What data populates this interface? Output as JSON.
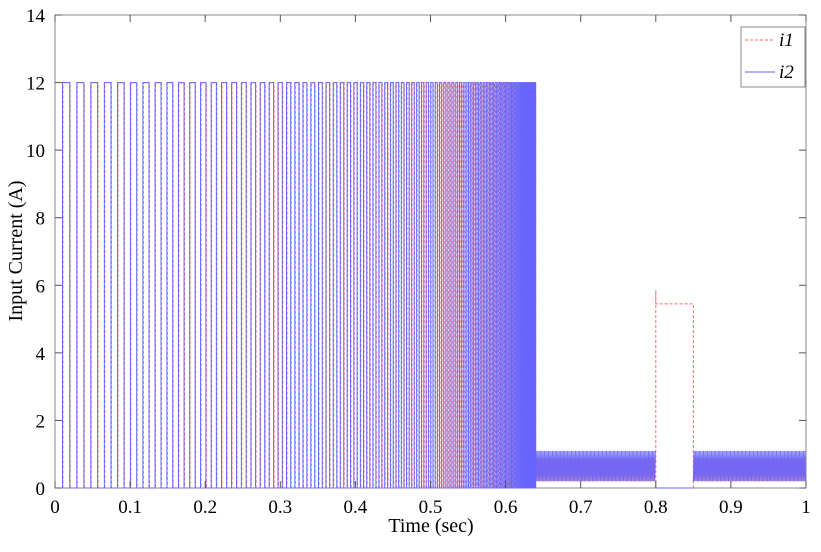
{
  "chart_data": {
    "type": "line",
    "xlabel": "Time (sec)",
    "ylabel": "Input Current (A)",
    "xlim": [
      0,
      1
    ],
    "ylim": [
      0,
      14
    ],
    "x_ticks": [
      "0",
      "0.1",
      "0.2",
      "0.3",
      "0.4",
      "0.5",
      "0.6",
      "0.7",
      "0.8",
      "0.9",
      "1"
    ],
    "y_ticks": [
      "0",
      "2",
      "4",
      "6",
      "8",
      "10",
      "12",
      "14"
    ],
    "grid": false,
    "legend_position": "top-right",
    "series": [
      {
        "name": "i1",
        "color": "#ff6666",
        "line_style": "dashed",
        "pulse_high": 12,
        "pulse_region": [
          0.01,
          0.64
        ],
        "ripple_band": [
          0.2,
          0.9
        ],
        "ripple_regions": [
          [
            0.64,
            0.8
          ],
          [
            0.85,
            1.0
          ]
        ],
        "step": {
          "x": [
            0.8,
            0.85
          ],
          "value": 5.45,
          "spike": 5.85
        }
      },
      {
        "name": "i2",
        "color": "#6666ff",
        "line_style": "solid",
        "pulse_high": 12,
        "pulse_region": [
          0.01,
          0.64
        ],
        "ripple_band": [
          0.2,
          1.1
        ],
        "ripple_regions": [
          [
            0.64,
            0.8
          ],
          [
            0.85,
            1.0
          ]
        ],
        "step": {
          "x": [
            0.8,
            0.85
          ],
          "value": 0
        }
      }
    ]
  }
}
